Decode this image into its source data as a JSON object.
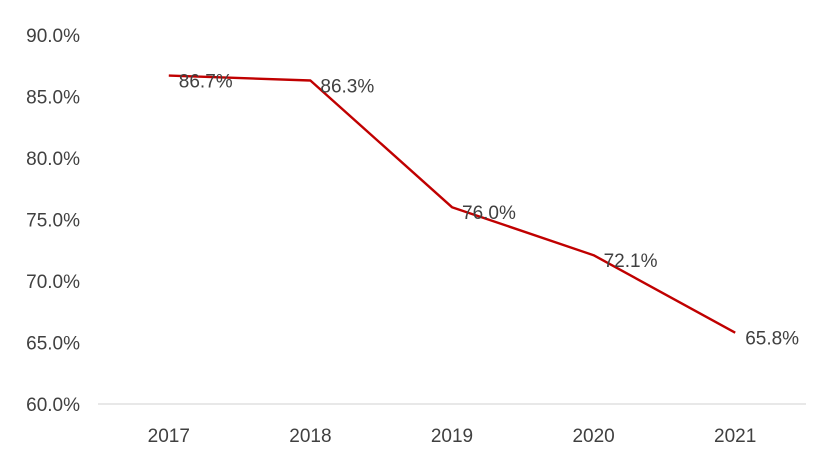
{
  "chart_data": {
    "type": "line",
    "categories": [
      "2017",
      "2018",
      "2019",
      "2020",
      "2021"
    ],
    "series": [
      {
        "values": [
          86.7,
          86.3,
          76.0,
          72.1,
          65.8
        ],
        "data_labels": [
          "86.7%",
          "86.3%",
          "76.0%",
          "72.1%",
          "65.8%"
        ],
        "color": "#C00000"
      }
    ],
    "title": "",
    "xlabel": "",
    "ylabel": "",
    "ylim": [
      60,
      90
    ],
    "y_ticks": [
      60,
      65,
      70,
      75,
      80,
      85,
      90
    ],
    "y_tick_labels": [
      "60.0%",
      "65.0%",
      "70.0%",
      "75.0%",
      "80.0%",
      "85.0%",
      "90.0%"
    ],
    "grid": false,
    "legend": "none",
    "axis_color": "#D9D9D9",
    "text_color": "#404040"
  }
}
